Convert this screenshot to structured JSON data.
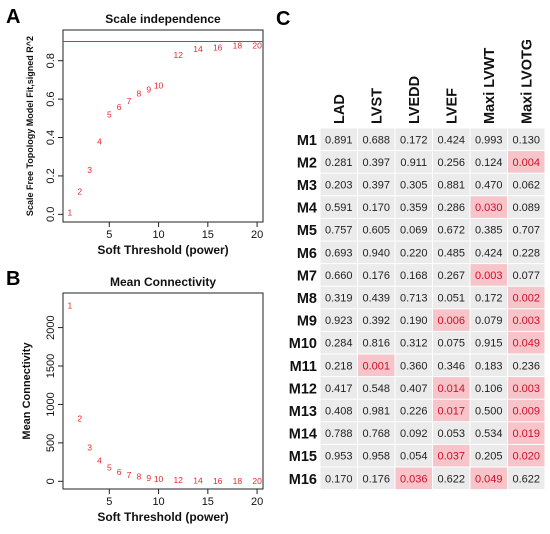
{
  "panels": {
    "A": {
      "letter": "A",
      "chart_data": {
        "type": "scatter",
        "title": "Scale independence",
        "xlabel": "Soft Threshold (power)",
        "ylabel": "Scale Free Topology Model Fit,signed R^2",
        "xlim": [
          0.3,
          20.6
        ],
        "ylim": [
          -0.04,
          0.96
        ],
        "xticks": [
          5,
          10,
          15,
          20
        ],
        "yticks": [
          0.0,
          0.2,
          0.4,
          0.6,
          0.8
        ],
        "hline": 0.9,
        "hline_color": "#e8282b",
        "point_color": "#e8282b",
        "labels": [
          "1",
          "2",
          "3",
          "4",
          "5",
          "6",
          "7",
          "8",
          "9",
          "10",
          "12",
          "14",
          "16",
          "18",
          "20"
        ],
        "x": [
          1,
          2,
          3,
          4,
          5,
          6,
          7,
          8,
          9,
          10,
          12,
          14,
          16,
          18,
          20
        ],
        "y": [
          0.01,
          0.12,
          0.23,
          0.38,
          0.52,
          0.56,
          0.59,
          0.63,
          0.65,
          0.67,
          0.83,
          0.86,
          0.87,
          0.88,
          0.88
        ]
      }
    },
    "B": {
      "letter": "B",
      "chart_data": {
        "type": "scatter",
        "title": "Mean Connectivity",
        "xlabel": "Soft Threshold (power)",
        "ylabel": "Mean Connectivity",
        "xlim": [
          0.3,
          20.6
        ],
        "ylim": [
          -100,
          2450
        ],
        "xticks": [
          5,
          10,
          15,
          20
        ],
        "yticks": [
          0,
          500,
          1000,
          1500,
          2000
        ],
        "point_color": "#e8282b",
        "labels": [
          "1",
          "2",
          "3",
          "4",
          "5",
          "6",
          "7",
          "8",
          "9",
          "10",
          "12",
          "14",
          "16",
          "18",
          "20"
        ],
        "x": [
          1,
          2,
          3,
          4,
          5,
          6,
          7,
          8,
          9,
          10,
          12,
          14,
          16,
          18,
          20
        ],
        "y": [
          2290,
          820,
          440,
          270,
          180,
          120,
          85,
          60,
          40,
          28,
          15,
          8,
          5,
          3,
          2
        ]
      }
    },
    "C": {
      "letter": "C",
      "chart_data": {
        "type": "table",
        "columns": [
          "LAD",
          "LVST",
          "LVEDD",
          "LVEF",
          "Maxi LVWT",
          "Maxi LVOTG"
        ],
        "rows": [
          "M1",
          "M2",
          "M3",
          "M4",
          "M5",
          "M6",
          "M7",
          "M8",
          "M9",
          "M10",
          "M11",
          "M12",
          "M13",
          "M14",
          "M15",
          "M16"
        ],
        "values": [
          [
            "0.891",
            "0.688",
            "0.172",
            "0.424",
            "0.993",
            "0.130"
          ],
          [
            "0.281",
            "0.397",
            "0.911",
            "0.256",
            "0.124",
            "0.004"
          ],
          [
            "0.203",
            "0.397",
            "0.305",
            "0.881",
            "0.470",
            "0.062"
          ],
          [
            "0.591",
            "0.170",
            "0.359",
            "0.286",
            "0.030",
            "0.089"
          ],
          [
            "0.757",
            "0.605",
            "0.069",
            "0.672",
            "0.385",
            "0.707"
          ],
          [
            "0.693",
            "0.940",
            "0.220",
            "0.485",
            "0.424",
            "0.228"
          ],
          [
            "0.660",
            "0.176",
            "0.168",
            "0.267",
            "0.003",
            "0.077"
          ],
          [
            "0.319",
            "0.439",
            "0.713",
            "0.051",
            "0.172",
            "0.002"
          ],
          [
            "0.923",
            "0.392",
            "0.190",
            "0.006",
            "0.079",
            "0.003"
          ],
          [
            "0.284",
            "0.816",
            "0.312",
            "0.075",
            "0.915",
            "0.049"
          ],
          [
            "0.218",
            "0.001",
            "0.360",
            "0.346",
            "0.183",
            "0.236"
          ],
          [
            "0.417",
            "0.548",
            "0.407",
            "0.014",
            "0.106",
            "0.003"
          ],
          [
            "0.408",
            "0.981",
            "0.226",
            "0.017",
            "0.500",
            "0.009"
          ],
          [
            "0.788",
            "0.768",
            "0.092",
            "0.053",
            "0.534",
            "0.019"
          ],
          [
            "0.953",
            "0.958",
            "0.054",
            "0.037",
            "0.205",
            "0.020"
          ],
          [
            "0.170",
            "0.176",
            "0.036",
            "0.622",
            "0.049",
            "0.622"
          ]
        ],
        "highlight_threshold": 0.05,
        "highlight_color": "#f6c4c9",
        "cell_color": "#ebebeb",
        "highlight_text_color": "#d0102b"
      }
    }
  }
}
